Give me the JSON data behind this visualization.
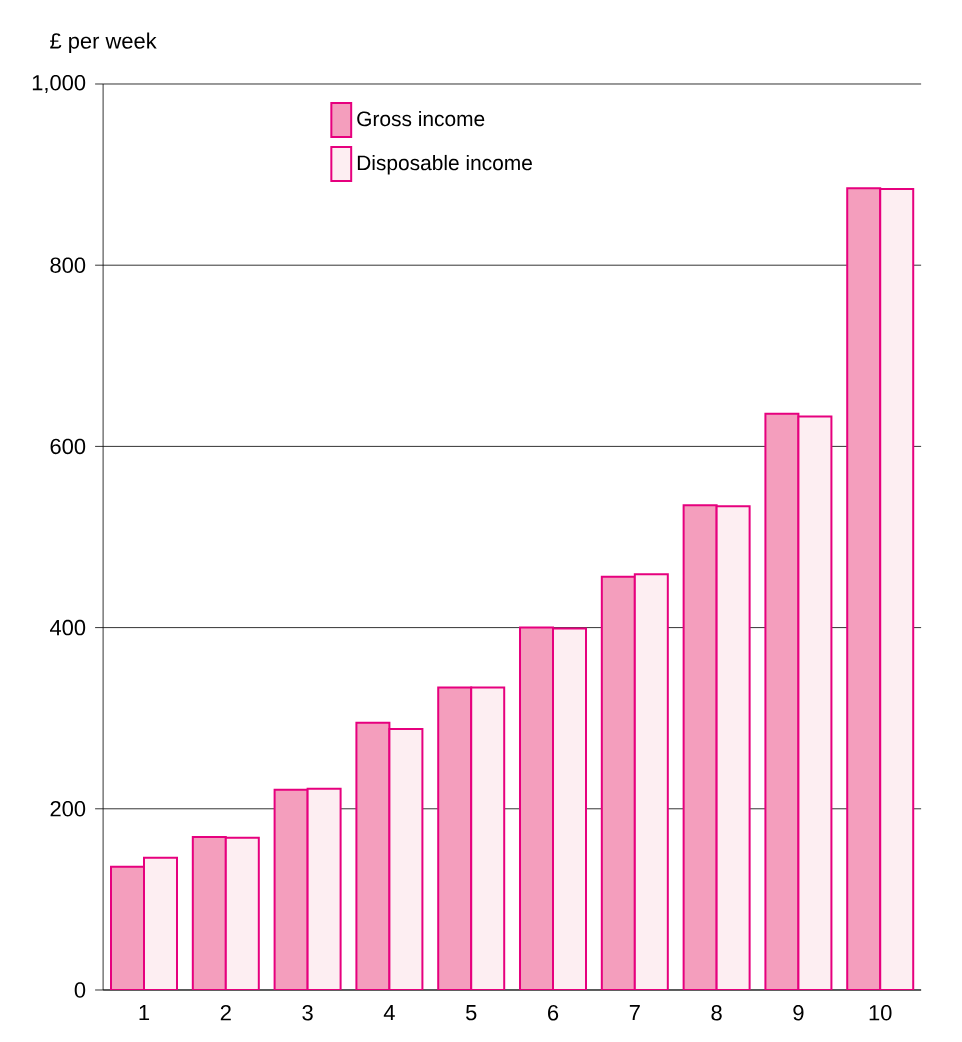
{
  "chart_data": {
    "type": "bar",
    "ylabel": "£ per week",
    "categories": [
      "1",
      "2",
      "3",
      "4",
      "5",
      "6",
      "7",
      "8",
      "9",
      "10"
    ],
    "series": [
      {
        "name": "Gross income",
        "color": "#f49ebd",
        "values": [
          136,
          169,
          221,
          295,
          334,
          400,
          456,
          535,
          636,
          885
        ]
      },
      {
        "name": "Disposable income",
        "color": "#fdeef2",
        "values": [
          146,
          168,
          222,
          288,
          334,
          399,
          459,
          534,
          633,
          884
        ]
      }
    ],
    "ylim": [
      0,
      1000
    ],
    "yticks": [
      0,
      200,
      400,
      600,
      800,
      {
        "value": 1000,
        "label": "1,000"
      }
    ],
    "grid": "y",
    "legend": "top"
  }
}
